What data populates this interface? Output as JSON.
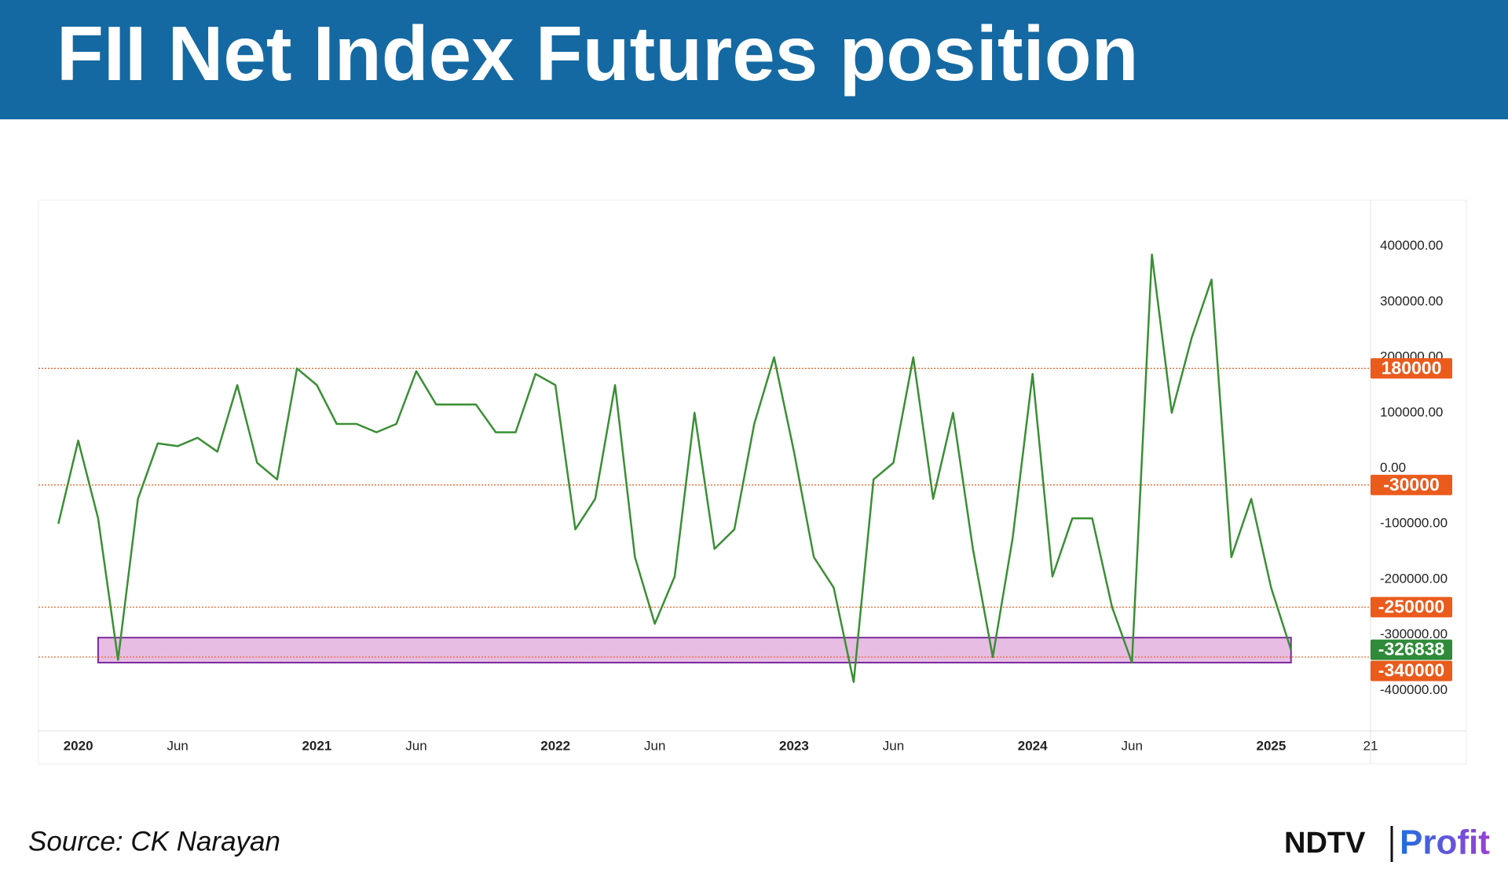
{
  "chart_data": {
    "type": "line",
    "title": "FII Net Index Futures position",
    "source": "Source: CK Narayan",
    "brand": {
      "name": "NDTV",
      "product": "Profit"
    },
    "x": [
      "2019-12",
      "2020-01",
      "2020-02",
      "2020-03",
      "2020-04",
      "2020-05",
      "2020-06",
      "2020-07",
      "2020-08",
      "2020-09",
      "2020-10",
      "2020-11",
      "2020-12",
      "2021-01",
      "2021-02",
      "2021-03",
      "2021-04",
      "2021-05",
      "2021-06",
      "2021-07",
      "2021-08",
      "2021-09",
      "2021-10",
      "2021-11",
      "2021-12",
      "2022-01",
      "2022-02",
      "2022-03",
      "2022-04",
      "2022-05",
      "2022-06",
      "2022-07",
      "2022-08",
      "2022-09",
      "2022-10",
      "2022-11",
      "2022-12",
      "2023-01",
      "2023-02",
      "2023-03",
      "2023-04",
      "2023-05",
      "2023-06",
      "2023-07",
      "2023-08",
      "2023-09",
      "2023-10",
      "2023-11",
      "2023-12",
      "2024-01",
      "2024-02",
      "2024-03",
      "2024-04",
      "2024-05",
      "2024-06",
      "2024-07",
      "2024-08",
      "2024-09",
      "2024-10",
      "2024-11",
      "2024-12",
      "2025-01",
      "2025-02"
    ],
    "values": [
      -100000,
      50000,
      -90000,
      -345000,
      -55000,
      45000,
      40000,
      55000,
      30000,
      150000,
      10000,
      -20000,
      180000,
      150000,
      80000,
      80000,
      65000,
      80000,
      175000,
      115000,
      115000,
      115000,
      65000,
      65000,
      170000,
      150000,
      -110000,
      -55000,
      150000,
      -160000,
      -280000,
      -195000,
      100000,
      -145000,
      -110000,
      80000,
      200000,
      30000,
      -160000,
      -215000,
      -385000,
      -20000,
      10000,
      200000,
      -55000,
      100000,
      -145000,
      -340000,
      -125000,
      170000,
      -195000,
      -90000,
      -90000,
      -250000,
      -350000,
      385000,
      100000,
      235000,
      340000,
      -160000,
      -55000,
      -215000,
      -326838
    ],
    "color": "#3a8f35",
    "xlim": [
      "2019-11",
      "2025-06"
    ],
    "xticks": [
      {
        "value": "2020-01",
        "label": "2020"
      },
      {
        "value": "2020-06",
        "label": "Jun"
      },
      {
        "value": "2021-01",
        "label": "2021"
      },
      {
        "value": "2021-06",
        "label": "Jun"
      },
      {
        "value": "2022-01",
        "label": "2022"
      },
      {
        "value": "2022-06",
        "label": "Jun"
      },
      {
        "value": "2023-01",
        "label": "2023"
      },
      {
        "value": "2023-06",
        "label": "Jun"
      },
      {
        "value": "2024-01",
        "label": "2024"
      },
      {
        "value": "2024-06",
        "label": "Jun"
      },
      {
        "value": "2025-01",
        "label": "2025"
      },
      {
        "value": "2025-06",
        "label": "21"
      }
    ],
    "ylim": [
      -473000,
      483000
    ],
    "yticks": [
      {
        "value": 400000,
        "label": "400000.00"
      },
      {
        "value": 300000,
        "label": "300000.00"
      },
      {
        "value": 200000,
        "label": "200000.00"
      },
      {
        "value": 100000,
        "label": "100000.00"
      },
      {
        "value": 0,
        "label": "0.00"
      },
      {
        "value": -100000,
        "label": "-100000.00"
      },
      {
        "value": -200000,
        "label": "-200000.00"
      },
      {
        "value": -300000,
        "label": "-300000.00"
      },
      {
        "value": -400000,
        "label": "-400000.00"
      }
    ],
    "hlines": [
      180000,
      -30000,
      -250000,
      -340000
    ],
    "hline_color": "#ea5b1c",
    "last_value_color": "#2f8a39",
    "zone": {
      "x": [
        "2020-02",
        "2025-02"
      ],
      "y": [
        -350000,
        -305000
      ],
      "color": "#e7bde3",
      "stroke": "#7a2a9c"
    },
    "grid": false
  }
}
